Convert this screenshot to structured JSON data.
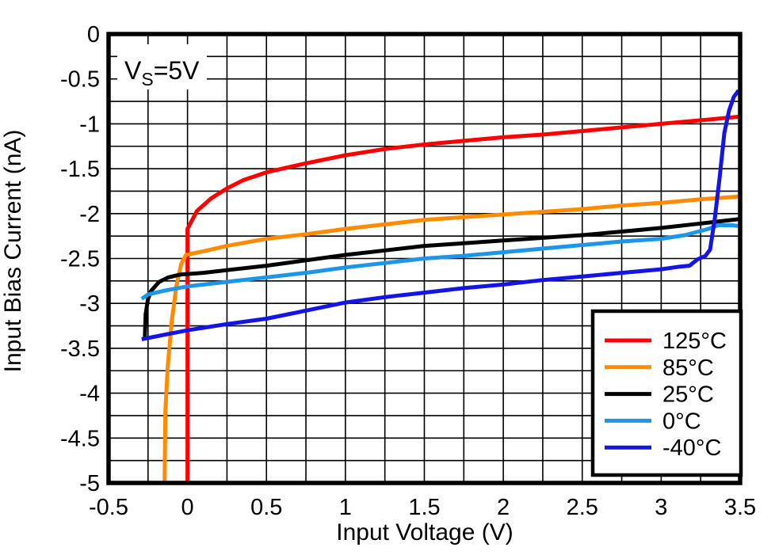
{
  "chart_data": {
    "type": "line",
    "title": "",
    "xlabel": "Input Voltage (V)",
    "ylabel": "Input Bias Current (nA)",
    "annotation": {
      "main": "V",
      "sub": "S",
      "rest": "=5V"
    },
    "xlim": [
      -0.5,
      3.5
    ],
    "ylim": [
      -5,
      0
    ],
    "grid": "on",
    "grid_step": 0.25,
    "x_ticks": [
      {
        "value": -0.5,
        "label": "-0.5"
      },
      {
        "value": 0,
        "label": "0"
      },
      {
        "value": 0.5,
        "label": "0.5"
      },
      {
        "value": 1,
        "label": "1"
      },
      {
        "value": 1.5,
        "label": "1.5"
      },
      {
        "value": 2,
        "label": "2"
      },
      {
        "value": 2.5,
        "label": "2.5"
      },
      {
        "value": 3,
        "label": "3"
      },
      {
        "value": 3.5,
        "label": "3.5"
      }
    ],
    "y_ticks": [
      {
        "value": 0,
        "label": "0"
      },
      {
        "value": -0.5,
        "label": "-0.5"
      },
      {
        "value": -1,
        "label": "-1"
      },
      {
        "value": -1.5,
        "label": "-1.5"
      },
      {
        "value": -2,
        "label": "-2"
      },
      {
        "value": -2.5,
        "label": "-2.5"
      },
      {
        "value": -3,
        "label": "-3"
      },
      {
        "value": -3.5,
        "label": "-3.5"
      },
      {
        "value": -4,
        "label": "-4"
      },
      {
        "value": -4.5,
        "label": "-4.5"
      },
      {
        "value": -5,
        "label": "-5"
      }
    ],
    "legend_position": "lower right",
    "series": [
      {
        "name": "125°C",
        "color": "#FF0000",
        "points": [
          [
            0,
            -5
          ],
          [
            0,
            -2.17
          ],
          [
            0.06,
            -1.97
          ],
          [
            0.15,
            -1.83
          ],
          [
            0.25,
            -1.72
          ],
          [
            0.35,
            -1.63
          ],
          [
            0.5,
            -1.54
          ],
          [
            0.75,
            -1.44
          ],
          [
            1,
            -1.35
          ],
          [
            1.25,
            -1.28
          ],
          [
            1.5,
            -1.23
          ],
          [
            1.75,
            -1.19
          ],
          [
            2,
            -1.15
          ],
          [
            2.25,
            -1.12
          ],
          [
            2.5,
            -1.08
          ],
          [
            2.75,
            -1.04
          ],
          [
            3,
            -1
          ],
          [
            3.25,
            -0.96
          ],
          [
            3.5,
            -0.92
          ]
        ]
      },
      {
        "name": "85°C",
        "color": "#FF8C00",
        "points": [
          [
            -0.145,
            -5
          ],
          [
            -0.14,
            -4.2
          ],
          [
            -0.125,
            -3.7
          ],
          [
            -0.1,
            -3.2
          ],
          [
            -0.07,
            -2.8
          ],
          [
            -0.04,
            -2.56
          ],
          [
            -0.01,
            -2.46
          ],
          [
            0.1,
            -2.42
          ],
          [
            0.25,
            -2.36
          ],
          [
            0.5,
            -2.28
          ],
          [
            0.75,
            -2.23
          ],
          [
            1,
            -2.17
          ],
          [
            1.25,
            -2.12
          ],
          [
            1.5,
            -2.07
          ],
          [
            1.75,
            -2.04
          ],
          [
            2,
            -2.01
          ],
          [
            2.25,
            -1.98
          ],
          [
            2.5,
            -1.95
          ],
          [
            2.75,
            -1.91
          ],
          [
            3,
            -1.88
          ],
          [
            3.25,
            -1.84
          ],
          [
            3.5,
            -1.81
          ]
        ]
      },
      {
        "name": "25°C",
        "color": "#000000",
        "points": [
          [
            -0.27,
            -3.38
          ],
          [
            -0.265,
            -3.12
          ],
          [
            -0.25,
            -2.95
          ],
          [
            -0.23,
            -2.86
          ],
          [
            -0.18,
            -2.76
          ],
          [
            -0.12,
            -2.71
          ],
          [
            -0.05,
            -2.68
          ],
          [
            0.1,
            -2.66
          ],
          [
            0.25,
            -2.63
          ],
          [
            0.5,
            -2.58
          ],
          [
            0.75,
            -2.52
          ],
          [
            1,
            -2.46
          ],
          [
            1.25,
            -2.41
          ],
          [
            1.5,
            -2.36
          ],
          [
            1.75,
            -2.33
          ],
          [
            2,
            -2.3
          ],
          [
            2.25,
            -2.27
          ],
          [
            2.5,
            -2.24
          ],
          [
            2.75,
            -2.2
          ],
          [
            3,
            -2.16
          ],
          [
            3.25,
            -2.11
          ],
          [
            3.5,
            -2.06
          ]
        ]
      },
      {
        "name": "0°C",
        "color": "#1E96E8",
        "points": [
          [
            -0.29,
            -2.95
          ],
          [
            -0.25,
            -2.9
          ],
          [
            -0.15,
            -2.86
          ],
          [
            0,
            -2.81
          ],
          [
            0.25,
            -2.76
          ],
          [
            0.5,
            -2.71
          ],
          [
            0.75,
            -2.66
          ],
          [
            1,
            -2.6
          ],
          [
            1.25,
            -2.55
          ],
          [
            1.5,
            -2.5
          ],
          [
            1.75,
            -2.47
          ],
          [
            2,
            -2.43
          ],
          [
            2.25,
            -2.39
          ],
          [
            2.5,
            -2.35
          ],
          [
            2.75,
            -2.31
          ],
          [
            3,
            -2.28
          ],
          [
            3.15,
            -2.24
          ],
          [
            3.3,
            -2.17
          ],
          [
            3.36,
            -2.13
          ],
          [
            3.45,
            -2.13
          ],
          [
            3.5,
            -2.14
          ]
        ]
      },
      {
        "name": "-40°C",
        "color": "#1414E6",
        "points": [
          [
            -0.29,
            -3.4
          ],
          [
            -0.15,
            -3.35
          ],
          [
            0,
            -3.3
          ],
          [
            0.25,
            -3.23
          ],
          [
            0.5,
            -3.17
          ],
          [
            0.75,
            -3.08
          ],
          [
            1,
            -2.99
          ],
          [
            1.25,
            -2.93
          ],
          [
            1.5,
            -2.88
          ],
          [
            1.75,
            -2.83
          ],
          [
            2,
            -2.79
          ],
          [
            2.25,
            -2.74
          ],
          [
            2.5,
            -2.7
          ],
          [
            2.75,
            -2.66
          ],
          [
            3,
            -2.62
          ],
          [
            3.12,
            -2.59
          ],
          [
            3.18,
            -2.58
          ],
          [
            3.23,
            -2.51
          ],
          [
            3.28,
            -2.47
          ],
          [
            3.31,
            -2.4
          ],
          [
            3.34,
            -2.05
          ],
          [
            3.37,
            -1.6
          ],
          [
            3.4,
            -1.1
          ],
          [
            3.43,
            -0.85
          ],
          [
            3.46,
            -0.7
          ],
          [
            3.49,
            -0.63
          ]
        ]
      }
    ]
  },
  "colors": {
    "axis": "#000000",
    "grid": "#000000",
    "background": "#FFFFFF"
  }
}
